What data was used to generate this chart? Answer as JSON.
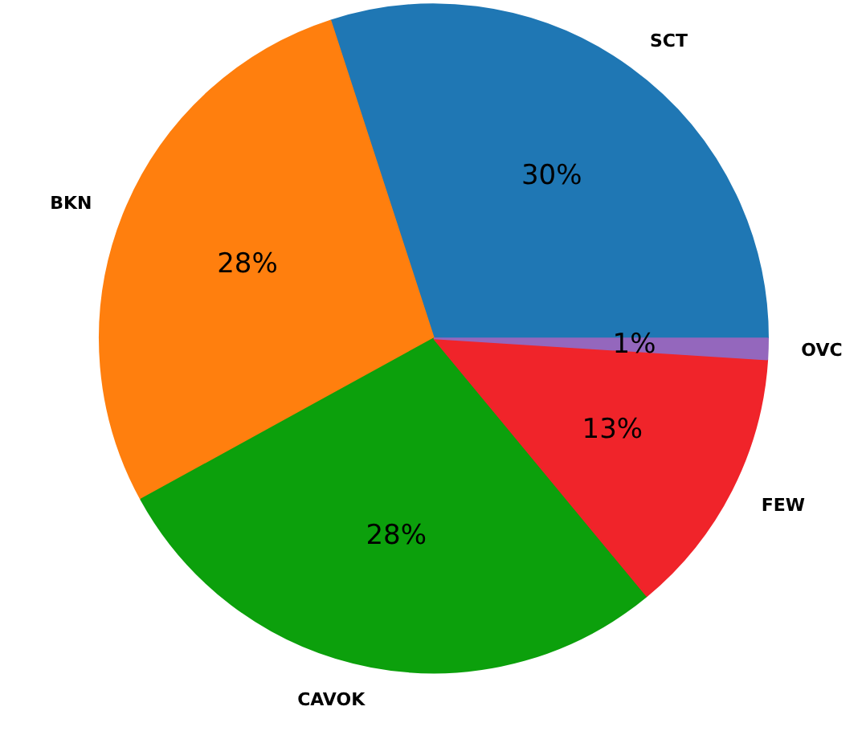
{
  "chart_data": {
    "type": "pie",
    "categories": [
      "SCT",
      "BKN",
      "CAVOK",
      "FEW",
      "OVC"
    ],
    "values": [
      30,
      28,
      28,
      13,
      1
    ],
    "colors": [
      "#1f77b4",
      "#ff7f0e",
      "#0ca00c",
      "#f0242a",
      "#9467bd"
    ],
    "value_labels": [
      "30%",
      "28%",
      "28%",
      "13%",
      "1%"
    ]
  }
}
